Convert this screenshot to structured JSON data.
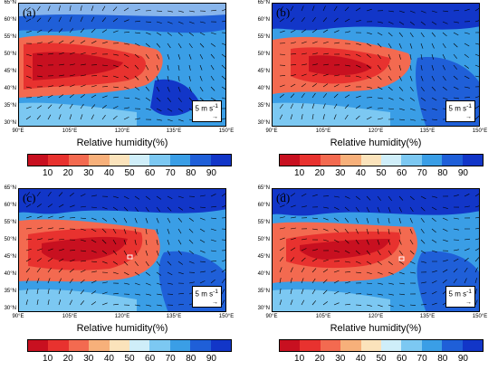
{
  "colors": {
    "cbar": [
      "#c81020",
      "#e8322f",
      "#f36a50",
      "#f7b07a",
      "#fbe3bb",
      "#cfeef9",
      "#7cc8f2",
      "#3a9ee6",
      "#1f5fd8",
      "#1236c8"
    ]
  },
  "axis": {
    "lat_ticks": [
      "65°N",
      "60°N",
      "55°N",
      "50°N",
      "45°N",
      "40°N",
      "35°N",
      "30°N"
    ],
    "lon_ticks": [
      "90°E",
      "105°E",
      "120°E",
      "135°E",
      "150°E"
    ]
  },
  "panels": [
    {
      "label": "(a)",
      "xtitle": "Relative humidity(%)",
      "vector_key": "5 m s",
      "vector_key_sup": "-1"
    },
    {
      "label": "(b)",
      "xtitle": "Relative humidity(%)",
      "vector_key": "5 m s",
      "vector_key_sup": "-1"
    },
    {
      "label": "(c)",
      "xtitle": "Relative humidity(%)",
      "vector_key": "5 m s",
      "vector_key_sup": "-1"
    },
    {
      "label": "(d)",
      "xtitle": "Relative humidity(%)",
      "vector_key": "5 m s",
      "vector_key_sup": "-1"
    }
  ],
  "colorbar": {
    "labels": [
      "10",
      "20",
      "30",
      "40",
      "50",
      "60",
      "70",
      "80",
      "90"
    ]
  }
}
